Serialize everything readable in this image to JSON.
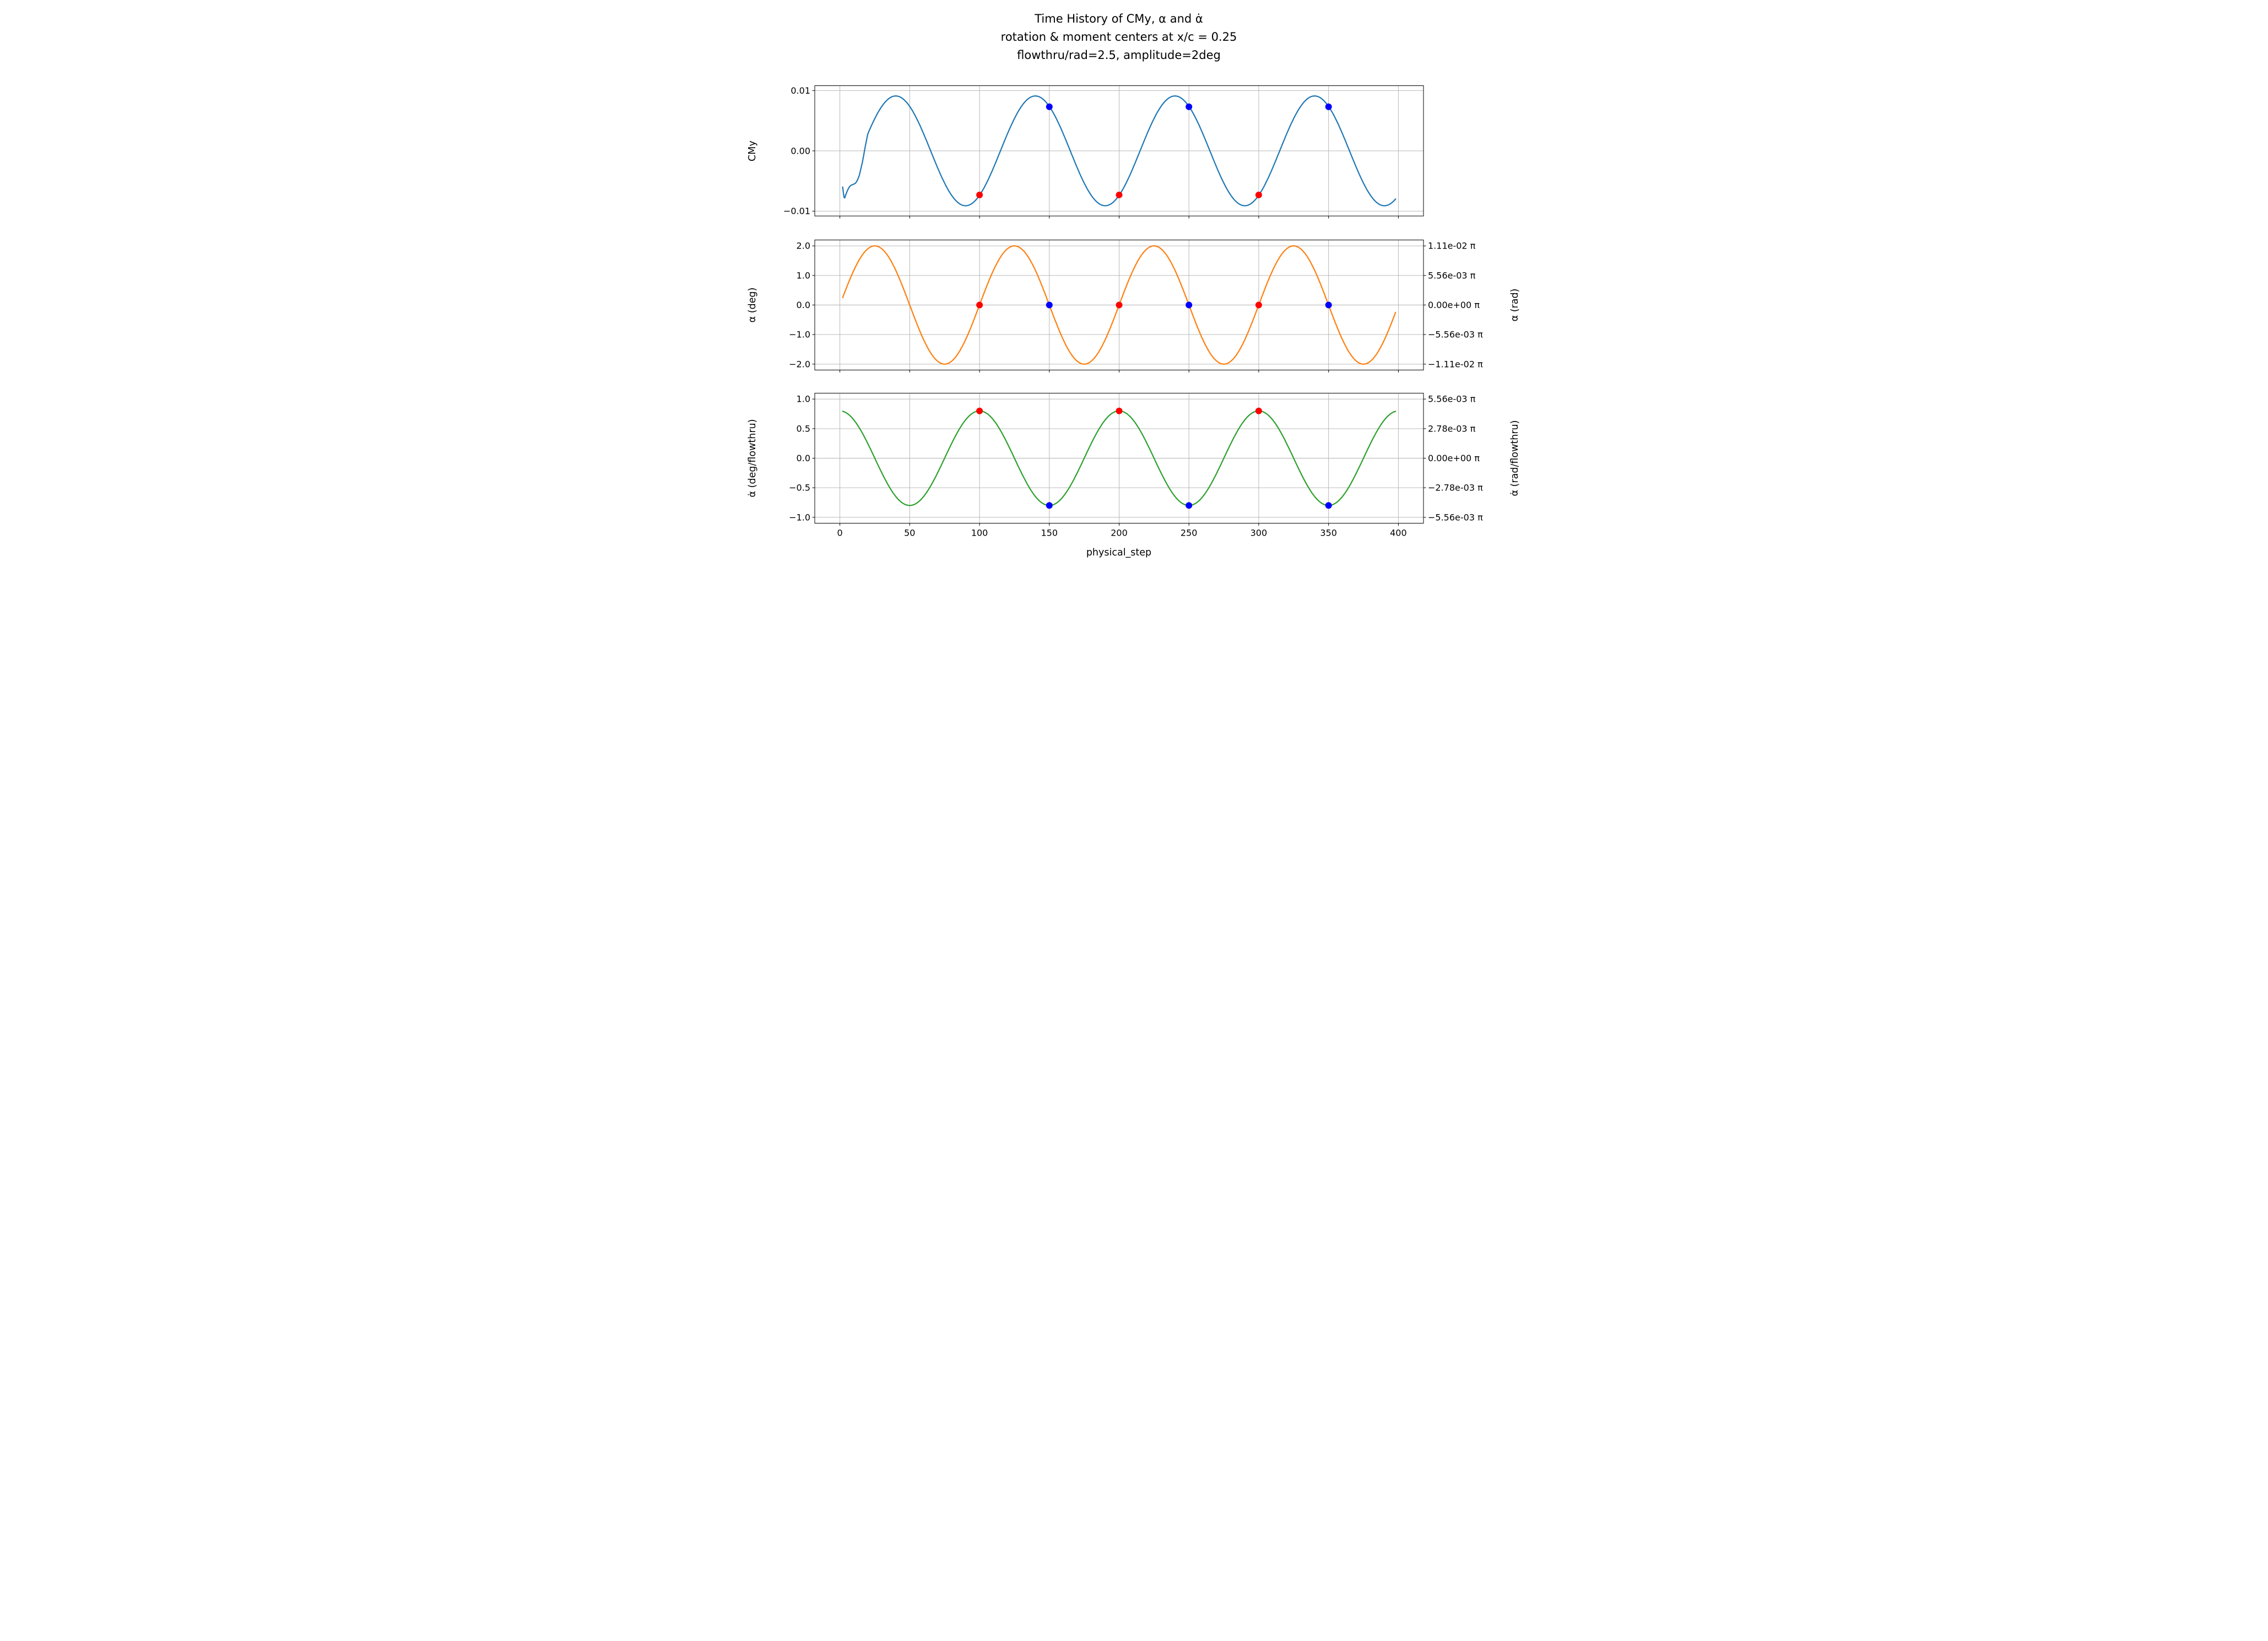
{
  "figure": {
    "title_lines": [
      "Time History of CMy, α and α̇",
      "rotation & moment centers at x/c = 0.25",
      "flowthru/rad=2.5, amplitude=2deg"
    ],
    "xlabel": "physical_step"
  },
  "chart_data": {
    "type": "line",
    "style": {
      "background": "#ffffff",
      "grid": "#b0b0b0",
      "spine": "#000000",
      "marker_red": "#ff0000",
      "marker_blue": "#0000ff"
    },
    "x_axis": {
      "label": "physical_step",
      "xlim": [
        -18,
        418
      ],
      "ticks": [
        0,
        50,
        100,
        150,
        200,
        250,
        300,
        350,
        400
      ],
      "tick_labels": [
        "0",
        "50",
        "100",
        "150",
        "200",
        "250",
        "300",
        "350",
        "400"
      ]
    },
    "subplots": [
      {
        "name": "cmy",
        "ylabel": "CMy",
        "ylim": [
          -0.0108,
          0.0108
        ],
        "yticks": {
          "values": [
            0.01,
            0.0,
            -0.01
          ],
          "labels": [
            "0.01",
            "0.00",
            "−0.01"
          ]
        },
        "series": [
          {
            "name": "CMy",
            "color": "#1f77b4",
            "pre_points": [
              [
                2,
                -0.006
              ],
              [
                2.5,
                -0.007
              ],
              [
                3,
                -0.0077
              ],
              [
                3.5,
                -0.0078
              ],
              [
                4,
                -0.0074
              ],
              [
                5,
                -0.0068
              ],
              [
                6,
                -0.0063
              ],
              [
                7,
                -0.0059
              ],
              [
                8,
                -0.0057
              ],
              [
                9,
                -0.0056
              ],
              [
                10,
                -0.0055
              ],
              [
                11,
                -0.0054
              ],
              [
                12,
                -0.0051
              ],
              [
                13,
                -0.0046
              ],
              [
                14,
                -0.004
              ],
              [
                15,
                -0.003
              ],
              [
                16,
                -0.002
              ],
              [
                17,
                -0.0008
              ],
              [
                18,
                0.0005
              ],
              [
                19,
                0.0017
              ]
            ],
            "waveform": {
              "kind": "sin",
              "amplitude": 0.0091,
              "period": 100,
              "phase": 15,
              "offset": 0,
              "x_start": 20,
              "x_end": 398
            }
          }
        ],
        "markers": [
          {
            "name": "red-marker",
            "color": "#ff0000",
            "points": [
              [
                100,
                -0.0073
              ],
              [
                200,
                -0.0073
              ],
              [
                300,
                -0.0073
              ]
            ]
          },
          {
            "name": "blue-marker",
            "color": "#0000ff",
            "points": [
              [
                150,
                0.0073
              ],
              [
                250,
                0.0073
              ],
              [
                350,
                0.0073
              ]
            ]
          }
        ]
      },
      {
        "name": "alpha",
        "ylabel": "α (deg)",
        "right_label": "α (rad)",
        "ylim": [
          -2.2,
          2.2
        ],
        "yticks": {
          "values": [
            2.0,
            1.0,
            0.0,
            -1.0,
            -2.0
          ],
          "labels": [
            "2.0",
            "1.0",
            "0.0",
            "−1.0",
            "−2.0"
          ]
        },
        "yticks_right": {
          "values": [
            2.0,
            1.0,
            0.0,
            -1.0,
            -2.0
          ],
          "labels": [
            "1.11e-02 π",
            "5.56e-03 π",
            "0.00e+00 π",
            "−5.56e-03 π",
            "−1.11e-02 π"
          ]
        },
        "series": [
          {
            "name": "alpha",
            "color": "#ff7f0e",
            "waveform": {
              "kind": "sin",
              "amplitude": 2.0,
              "period": 100,
              "phase": 0,
              "offset": 0,
              "x_start": 2,
              "x_end": 398
            }
          }
        ],
        "markers": [
          {
            "name": "red-marker",
            "color": "#ff0000",
            "points": [
              [
                100,
                0
              ],
              [
                200,
                0
              ],
              [
                300,
                0
              ]
            ]
          },
          {
            "name": "blue-marker",
            "color": "#0000ff",
            "points": [
              [
                150,
                0
              ],
              [
                250,
                0
              ],
              [
                350,
                0
              ]
            ]
          }
        ]
      },
      {
        "name": "alphadot",
        "ylabel": "α̇ (deg/flowthru)",
        "right_label": "α̇ (rad/flowthru)",
        "ylim": [
          -1.1,
          1.1
        ],
        "yticks": {
          "values": [
            1.0,
            0.5,
            0.0,
            -0.5,
            -1.0
          ],
          "labels": [
            "1.0",
            "0.5",
            "0.0",
            "−0.5",
            "−1.0"
          ]
        },
        "yticks_right": {
          "values": [
            1.0,
            0.5,
            0.0,
            -0.5,
            -1.0
          ],
          "labels": [
            "5.56e-03 π",
            "2.78e-03 π",
            "0.00e+00 π",
            "−2.78e-03 π",
            "−5.56e-03 π"
          ]
        },
        "series": [
          {
            "name": "alphadot",
            "color": "#2ca02c",
            "waveform": {
              "kind": "cos",
              "amplitude": 0.8,
              "period": 100,
              "phase": 0,
              "offset": 0,
              "x_start": 2,
              "x_end": 398
            }
          }
        ],
        "markers": [
          {
            "name": "red-marker",
            "color": "#ff0000",
            "points": [
              [
                100,
                0.8
              ],
              [
                200,
                0.8
              ],
              [
                300,
                0.8
              ]
            ]
          },
          {
            "name": "blue-marker",
            "color": "#0000ff",
            "points": [
              [
                150,
                -0.8
              ],
              [
                250,
                -0.8
              ],
              [
                350,
                -0.8
              ]
            ]
          }
        ]
      }
    ]
  }
}
